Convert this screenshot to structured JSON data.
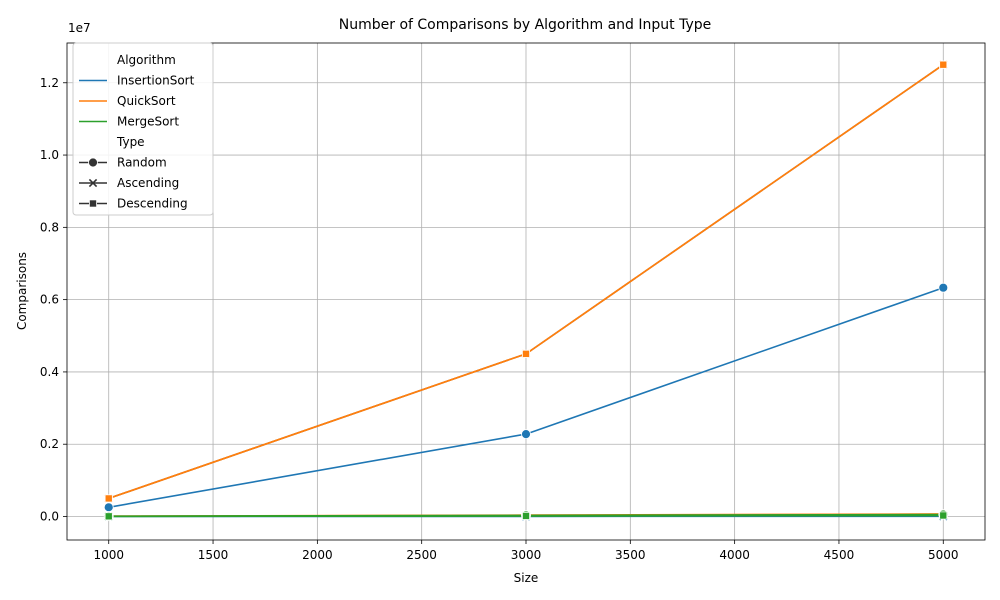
{
  "chart_data": {
    "type": "line",
    "title": "Number of Comparisons by Algorithm and Input Type",
    "xlabel": "Size",
    "ylabel": "Comparisons",
    "y_scale_label": "1e7",
    "x": [
      1000,
      3000,
      5000
    ],
    "xlim": [
      800,
      5200
    ],
    "ylim": [
      -650000,
      13100000
    ],
    "x_ticks": [
      1000,
      1500,
      2000,
      2500,
      3000,
      3500,
      4000,
      4500,
      5000
    ],
    "y_ticks": [
      0,
      2000000,
      4000000,
      6000000,
      8000000,
      10000000,
      12000000
    ],
    "y_tick_labels": [
      "0.0",
      "0.2",
      "0.4",
      "0.6",
      "0.8",
      "1.0",
      "1.2"
    ],
    "grid": true,
    "legend_position": "top-left",
    "legend": {
      "hue_title": "Algorithm",
      "style_title": "Type",
      "hue_entries": [
        {
          "name": "InsertionSort",
          "color": "#1f77b4"
        },
        {
          "name": "QuickSort",
          "color": "#ff7f0e"
        },
        {
          "name": "MergeSort",
          "color": "#2ca02c"
        }
      ],
      "style_entries": [
        {
          "name": "Random",
          "marker": "circle"
        },
        {
          "name": "Ascending",
          "marker": "x"
        },
        {
          "name": "Descending",
          "marker": "square"
        }
      ]
    },
    "series": [
      {
        "algorithm": "InsertionSort",
        "type": "Random",
        "marker": "circle",
        "color": "#1f77b4",
        "values": [
          255000,
          2280000,
          6330000
        ]
      },
      {
        "algorithm": "InsertionSort",
        "type": "Ascending",
        "marker": "x",
        "color": "#1f77b4",
        "values": [
          1000,
          3000,
          5000
        ]
      },
      {
        "algorithm": "InsertionSort",
        "type": "Descending",
        "marker": "square",
        "color": "#1f77b4",
        "values": [
          500000,
          4500000,
          12500000
        ]
      },
      {
        "algorithm": "QuickSort",
        "type": "Random",
        "marker": "circle",
        "color": "#ff7f0e",
        "values": [
          11000,
          39000,
          70000
        ]
      },
      {
        "algorithm": "QuickSort",
        "type": "Ascending",
        "marker": "x",
        "color": "#ff7f0e",
        "values": [
          500000,
          4500000,
          12500000
        ]
      },
      {
        "algorithm": "QuickSort",
        "type": "Descending",
        "marker": "square",
        "color": "#ff7f0e",
        "values": [
          500000,
          4500000,
          12500000
        ]
      },
      {
        "algorithm": "MergeSort",
        "type": "Random",
        "marker": "circle",
        "color": "#2ca02c",
        "values": [
          8700,
          30900,
          55200
        ]
      },
      {
        "algorithm": "MergeSort",
        "type": "Ascending",
        "marker": "x",
        "color": "#2ca02c",
        "values": [
          5000,
          17000,
          29000
        ]
      },
      {
        "algorithm": "MergeSort",
        "type": "Descending",
        "marker": "square",
        "color": "#2ca02c",
        "values": [
          5000,
          16000,
          28000
        ]
      }
    ]
  }
}
